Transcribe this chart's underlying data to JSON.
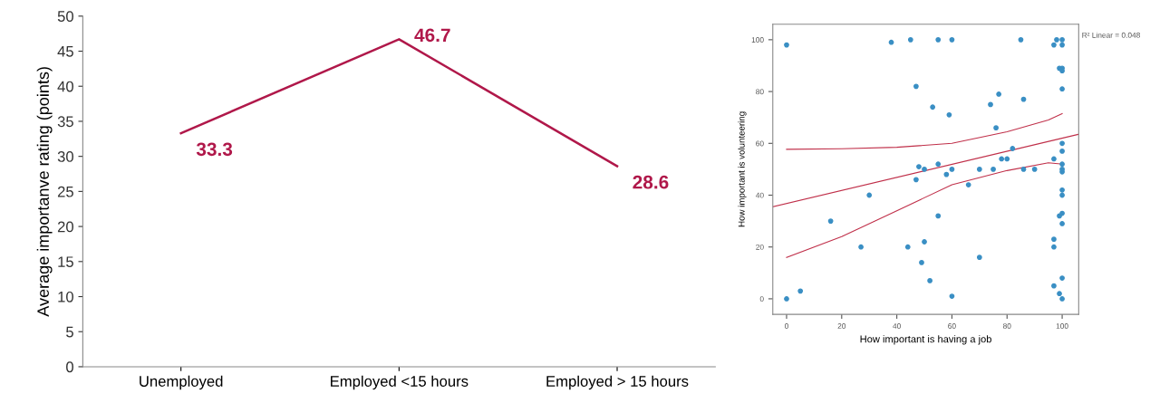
{
  "chart_data": [
    {
      "type": "line",
      "categories": [
        "Unemployed",
        "Employed <15 hours",
        "Employed > 15 hours"
      ],
      "ylabel": "Average importanve rating (points)",
      "ylim": [
        0,
        50
      ],
      "yticks": [
        0,
        5,
        10,
        15,
        20,
        25,
        30,
        35,
        40,
        45,
        50
      ],
      "grid": false,
      "legend": false,
      "data_labels": true,
      "series": [
        {
          "color": "#b0184a",
          "values": [
            33.3,
            46.7,
            28.6
          ]
        }
      ]
    },
    {
      "type": "scatter",
      "xlabel": "How important is having a job",
      "ylabel": "How important is volunteering",
      "xlim": [
        -5,
        106
      ],
      "ylim": [
        -6,
        106
      ],
      "xticks": [
        0,
        20,
        40,
        60,
        80,
        100
      ],
      "yticks": [
        0,
        20,
        40,
        60,
        80,
        100
      ],
      "grid": false,
      "legend": false,
      "annotations": [
        "R² Linear = 0.048"
      ],
      "series": [
        {
          "type": "scatter",
          "color": "#3a8fc4",
          "x": [
            0,
            0,
            5,
            16,
            27,
            30,
            38,
            45,
            47,
            47,
            48,
            50,
            49,
            50,
            44,
            52,
            53,
            55,
            55,
            55,
            58,
            59,
            60,
            60,
            60,
            66,
            70,
            70,
            75,
            74,
            76,
            77,
            78,
            80,
            82,
            85,
            86,
            86,
            90,
            97,
            98,
            97,
            97,
            97,
            97,
            99,
            99,
            100,
            100,
            100,
            100,
            100,
            100,
            100,
            100,
            100,
            100,
            100,
            100,
            100,
            100,
            100,
            100,
            99
          ],
          "values": [
            98,
            0,
            3,
            30,
            20,
            40,
            99,
            100,
            82,
            46,
            51,
            50,
            14,
            22,
            20,
            7,
            74,
            100,
            52,
            32,
            48,
            71,
            100,
            50,
            1,
            44,
            50,
            16,
            50,
            75,
            66,
            79,
            54,
            54,
            58,
            100,
            77,
            50,
            50,
            98,
            100,
            54,
            23,
            20,
            5,
            2,
            32,
            100,
            98,
            89,
            88,
            81,
            60,
            57,
            52,
            50,
            49,
            42,
            40,
            33,
            29,
            8,
            0,
            89
          ]
        },
        {
          "type": "line",
          "color": "#c0304a",
          "x": [
            -5,
            106
          ],
          "values": [
            35.5,
            63.5
          ]
        },
        {
          "type": "line",
          "color": "#c0304a",
          "x": [
            0,
            20,
            40,
            60,
            80,
            95,
            100
          ],
          "values": [
            16,
            24,
            34,
            44,
            49.5,
            52.5,
            52
          ]
        },
        {
          "type": "line",
          "color": "#c0304a",
          "x": [
            0,
            20,
            40,
            60,
            80,
            95,
            100
          ],
          "values": [
            57.7,
            57.9,
            58.5,
            60,
            64.5,
            69,
            71.5
          ]
        }
      ]
    }
  ]
}
